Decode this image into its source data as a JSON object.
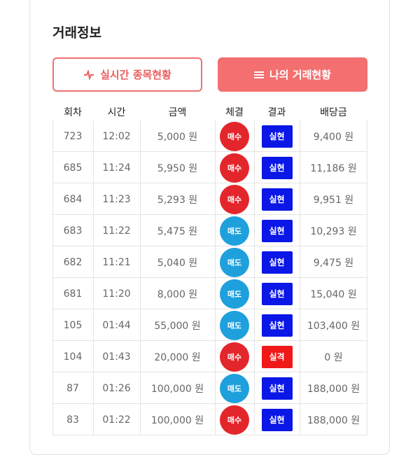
{
  "header": {
    "title": "거래정보"
  },
  "buttons": [
    {
      "label": "실시간 종목현황"
    },
    {
      "label": "나의 거래현황"
    }
  ],
  "table": {
    "columns": [
      "회차",
      "시간",
      "금액",
      "체결",
      "결과",
      "배당금"
    ],
    "rows": [
      [
        "723",
        "12:02",
        "5,000 원",
        "매수",
        "실현",
        "9,400 원"
      ],
      [
        "685",
        "11:24",
        "5,950 원",
        "매수",
        "실현",
        "11,186 원"
      ],
      [
        "684",
        "11:23",
        "5,293 원",
        "매수",
        "실현",
        "9,951 원"
      ],
      [
        "683",
        "11:22",
        "5,475 원",
        "매도",
        "실현",
        "10,293 원"
      ],
      [
        "682",
        "11:21",
        "5,040 원",
        "매도",
        "실현",
        "9,475 원"
      ],
      [
        "681",
        "11:20",
        "8,000 원",
        "매도",
        "실현",
        "15,040 원"
      ],
      [
        "105",
        "01:44",
        "55,000 원",
        "매도",
        "실현",
        "103,400 원"
      ],
      [
        "104",
        "01:43",
        "20,000 원",
        "매수",
        "실격",
        "0 원"
      ],
      [
        "87",
        "01:26",
        "100,000 원",
        "매도",
        "실현",
        "188,000 원"
      ],
      [
        "83",
        "01:22",
        "100,000 원",
        "매수",
        "실현",
        "188,000 원"
      ]
    ]
  },
  "badge_colors": {
    "매수": "#e3262b",
    "매도": "#1ea0dc",
    "실현": "#0a17e6",
    "실격": "#f01818"
  }
}
